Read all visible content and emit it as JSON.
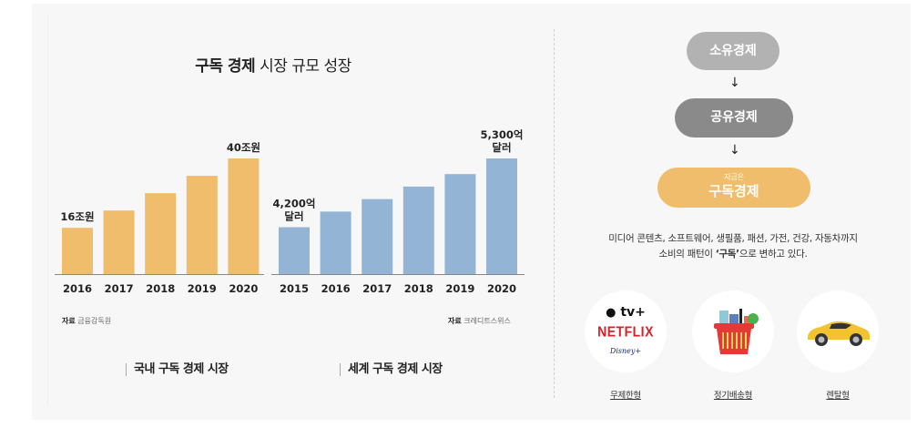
{
  "title": {
    "bold": "구독 경제",
    "rest": " 시장 규모 성장"
  },
  "chart_data": [
    {
      "type": "bar",
      "name": "domestic",
      "title": "국내 구독 경제 시장",
      "categories": [
        "2016",
        "2017",
        "2018",
        "2019",
        "2020"
      ],
      "values": [
        16,
        22,
        28,
        34,
        40
      ],
      "unit": "조원",
      "data_labels": {
        "2016": "16조원",
        "2020": "40조원"
      },
      "color": "#efbd6b",
      "source_label": "자료",
      "source": "금융감독원",
      "ylim": [
        0,
        40
      ],
      "grid": false,
      "legend": "none"
    },
    {
      "type": "bar",
      "name": "world",
      "title": "세계 구독 경제 시장",
      "categories": [
        "2015",
        "2016",
        "2017",
        "2018",
        "2019",
        "2020"
      ],
      "values": [
        4200,
        4450,
        4650,
        4850,
        5050,
        5300
      ],
      "unit": "억 달러",
      "data_labels": {
        "2015": [
          "4,200억",
          "달러"
        ],
        "2020": [
          "5,300억",
          "달러"
        ]
      },
      "color": "#94b4d6",
      "source_label": "자료",
      "source": "크레디트스위스",
      "ylim": [
        3450,
        5300
      ],
      "grid": false,
      "legend": "none"
    }
  ],
  "flow": {
    "step1": "소유경제",
    "step2": "공유경제",
    "step3_sub": "지금은",
    "step3": "구독경제",
    "arrow": "↓"
  },
  "description": {
    "line1": "미디어 콘텐츠, 소프트웨어, 생필품, 패션, 가전, 건강, 자동차까지",
    "line2_pre": "소비의 패턴이 ",
    "line2_bold": "‘구독’",
    "line2_post": "으로 변하고 있다."
  },
  "types": [
    {
      "label": "무제한형",
      "icon": "streaming-logos-icon",
      "logos": {
        "apple": " tv+",
        "netflix": "NETFLIX",
        "disney": "Disney+"
      }
    },
    {
      "label": "정기배송형",
      "icon": "shopping-basket-icon"
    },
    {
      "label": "렌탈형",
      "icon": "sports-car-icon"
    }
  ]
}
